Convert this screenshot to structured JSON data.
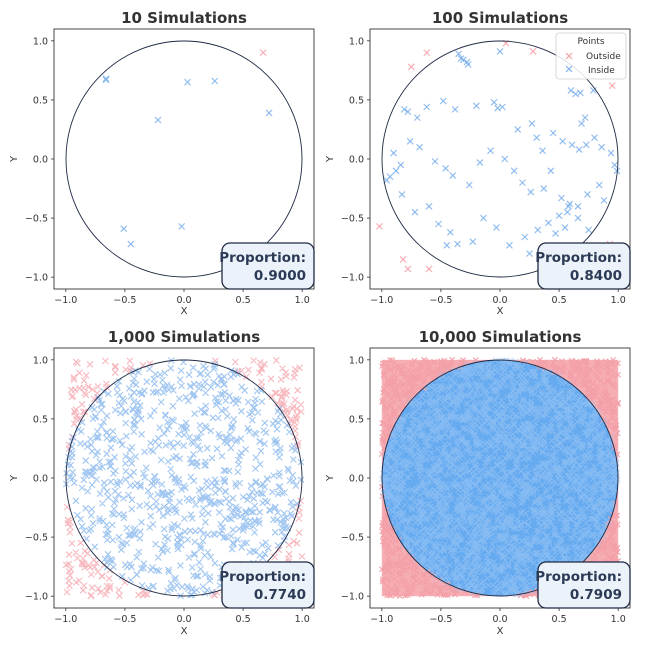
{
  "chart_data": [
    {
      "type": "scatter",
      "title": "10 Simulations",
      "xlabel": "X",
      "ylabel": "Y",
      "xlim": [
        -1.1,
        1.1
      ],
      "ylim": [
        -1.1,
        1.1
      ],
      "xticks": [
        "−1.0",
        "−0.5",
        "0.0",
        "0.5",
        "1.0"
      ],
      "yticks": [
        "−1.0",
        "−0.5",
        "0.0",
        "0.5",
        "1.0"
      ],
      "grid": false,
      "proportion_label": "Proportion:",
      "proportion_value": "0.9000",
      "series": [
        {
          "color": "#f4a0a8",
          "marker": "x",
          "x": [
            0.67
          ],
          "y": [
            0.9
          ]
        },
        {
          "color": "#80b3ec",
          "marker": "x",
          "x": [
            -0.66,
            -0.66,
            -0.22,
            0.03,
            0.26,
            0.72,
            -0.51,
            -0.45,
            -0.02
          ],
          "y": [
            0.68,
            0.67,
            0.33,
            0.65,
            0.66,
            0.39,
            -0.59,
            -0.72,
            -0.57
          ]
        }
      ]
    },
    {
      "type": "scatter",
      "title": "100 Simulations",
      "xlabel": "X",
      "ylabel": "Y",
      "xlim": [
        -1.1,
        1.1
      ],
      "ylim": [
        -1.1,
        1.1
      ],
      "xticks": [
        "−1.0",
        "−0.5",
        "0.0",
        "0.5",
        "1.0"
      ],
      "yticks": [
        "−1.0",
        "−0.5",
        "0.0",
        "0.5",
        "1.0"
      ],
      "grid": false,
      "legend": {
        "title": "Points",
        "placement": "top-right",
        "items": [
          "Outside",
          "Inside"
        ]
      },
      "proportion_label": "Proportion:",
      "proportion_value": "0.8400",
      "series": [
        {
          "name": "Outside",
          "color": "#f4a0a8",
          "marker": "x",
          "x": [
            -0.75,
            0.95,
            -1.02,
            -0.82,
            -0.6,
            0.92,
            0.79,
            0.4,
            0.92,
            -0.78,
            0.68,
            0.93,
            -0.62,
            0.28,
            0.05,
            0.78
          ],
          "y": [
            0.78,
            0.62,
            -0.57,
            -0.85,
            -0.93,
            -0.88,
            0.88,
            -0.96,
            0.88,
            -0.93,
            -0.86,
            -0.72,
            0.9,
            0.91,
            0.98,
            -0.77
          ]
        },
        {
          "name": "Inside",
          "color": "#80b3ec",
          "marker": "x",
          "x": [
            -0.35,
            -0.33,
            -0.31,
            -0.28,
            -0.27,
            0.0,
            0.6,
            0.68,
            0.64,
            0.79,
            0.72,
            0.69,
            -0.81,
            -0.78,
            -0.7,
            -0.62,
            -0.48,
            -0.38,
            -0.2,
            -0.05,
            -0.02,
            0.02,
            0.15,
            0.27,
            0.31,
            0.36,
            0.45,
            0.53,
            0.61,
            0.67,
            0.73,
            0.8,
            0.86,
            0.94,
            0.97,
            0.99,
            -0.96,
            -0.93,
            -0.88,
            -0.84,
            -0.76,
            -0.68,
            -0.55,
            -0.46,
            -0.4,
            -0.26,
            -0.17,
            -0.08,
            0.04,
            0.12,
            0.19,
            0.26,
            0.37,
            0.43,
            0.52,
            0.59,
            0.66,
            0.74,
            0.84,
            0.88,
            -0.9,
            -0.83,
            -0.72,
            -0.6,
            -0.52,
            -0.42,
            -0.36,
            -0.23,
            -0.14,
            -0.03,
            0.08,
            0.21,
            0.32,
            0.41,
            0.5,
            0.57,
            0.66,
            0.75,
            0.35,
            -0.45,
            0.47,
            0.58,
            0.55,
            0.25
          ],
          "y": [
            0.89,
            0.85,
            0.84,
            0.82,
            0.8,
            0.91,
            0.58,
            0.56,
            0.55,
            0.58,
            0.35,
            0.3,
            0.42,
            0.4,
            0.35,
            0.44,
            0.49,
            0.42,
            0.45,
            0.48,
            0.43,
            0.44,
            0.25,
            0.3,
            0.18,
            0.07,
            0.22,
            0.15,
            0.12,
            0.08,
            0.12,
            0.18,
            0.1,
            0.05,
            -0.05,
            -0.1,
            -0.18,
            -0.15,
            -0.1,
            -0.05,
            0.15,
            0.1,
            -0.02,
            -0.08,
            -0.14,
            -0.22,
            -0.03,
            0.07,
            0.0,
            -0.1,
            -0.2,
            -0.28,
            -0.25,
            -0.1,
            -0.33,
            -0.38,
            -0.4,
            -0.3,
            -0.22,
            -0.35,
            0.05,
            -0.3,
            -0.45,
            -0.4,
            -0.55,
            -0.62,
            -0.72,
            -0.7,
            -0.5,
            -0.58,
            -0.73,
            -0.66,
            -0.6,
            -0.54,
            -0.48,
            -0.45,
            -0.5,
            -0.6,
            -0.95,
            -0.73,
            -0.63,
            -0.4,
            -0.58,
            -0.8
          ]
        }
      ]
    },
    {
      "type": "scatter",
      "title": "1,000 Simulations",
      "xlabel": "X",
      "ylabel": "Y",
      "xlim": [
        -1.1,
        1.1
      ],
      "ylim": [
        -1.1,
        1.1
      ],
      "xticks": [
        "−1.0",
        "−0.5",
        "0.0",
        "0.5",
        "1.0"
      ],
      "yticks": [
        "−1.0",
        "−0.5",
        "0.0",
        "0.5",
        "1.0"
      ],
      "grid": false,
      "proportion_label": "Proportion:",
      "proportion_value": "0.7740",
      "sample_points": 1000,
      "series": [
        {
          "color": "#f4a0a8",
          "marker": "x",
          "points": "random samples in [−1, 1]² with x² + y² > 1"
        },
        {
          "color": "#80b3ec",
          "marker": "x",
          "points": "random samples in [−1, 1]² with x² + y² ≤ 1"
        }
      ]
    },
    {
      "type": "scatter",
      "title": "10,000 Simulations",
      "xlabel": "X",
      "ylabel": "Y",
      "xlim": [
        -1.1,
        1.1
      ],
      "ylim": [
        -1.1,
        1.1
      ],
      "xticks": [
        "−1.0",
        "−0.5",
        "0.0",
        "0.5",
        "1.0"
      ],
      "yticks": [
        "−1.0",
        "−0.5",
        "0.0",
        "0.5",
        "1.0"
      ],
      "grid": false,
      "proportion_label": "Proportion:",
      "proportion_value": "0.7909",
      "sample_points": 10000,
      "series": [
        {
          "color": "#f4a0a8",
          "marker": "x",
          "points": "random samples in [−1, 1]² with x² + y² > 1"
        },
        {
          "color": "#66aaf0",
          "marker": "x",
          "points": "random samples in [−1, 1]² with x² + y² ≤ 1"
        }
      ]
    }
  ],
  "colors": {
    "outside": "#f4a0a8",
    "inside": "#80b3ec",
    "inside_dense": "#66aaf0",
    "circle": "#1f2a44",
    "frame": "#333333"
  }
}
